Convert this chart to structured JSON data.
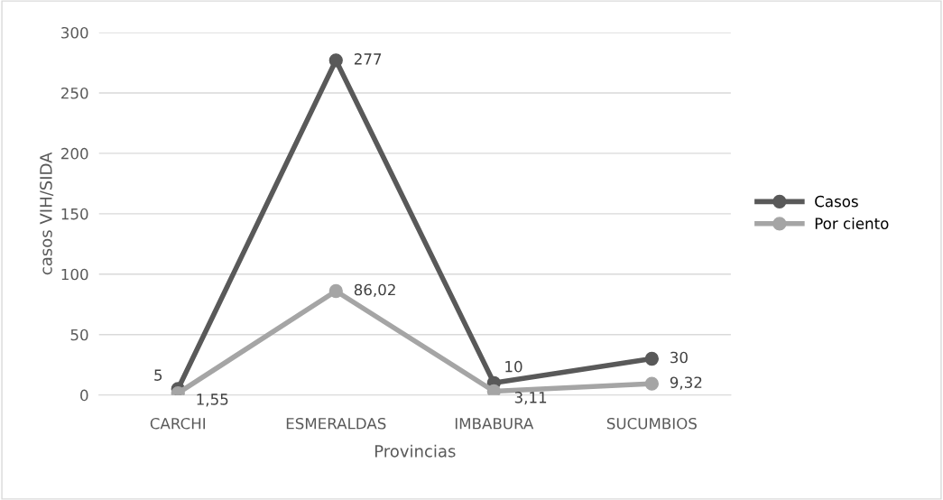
{
  "chart_data": {
    "type": "line",
    "xlabel": "Provincias",
    "ylabel": "casos VIH/SIDA",
    "categories": [
      "CARCHI",
      "ESMERALDAS",
      "IMBABURA",
      "SUCUMBIOS"
    ],
    "series": [
      {
        "name": "Casos",
        "color": "#595959",
        "values": [
          5,
          277,
          10,
          30
        ],
        "value_labels": [
          "5",
          "277",
          "10",
          "30"
        ]
      },
      {
        "name": "Por ciento",
        "color": "#a5a5a5",
        "values": [
          1.55,
          86.02,
          3.11,
          9.32
        ],
        "value_labels": [
          "1,55",
          "86,02",
          "3,11",
          "9,32"
        ]
      }
    ],
    "ylim": [
      0,
      300
    ],
    "yticks": [
      0,
      50,
      100,
      150,
      200,
      250,
      300
    ],
    "grid": "y",
    "legend": "right",
    "marker": "circle",
    "line_style": "solid"
  }
}
